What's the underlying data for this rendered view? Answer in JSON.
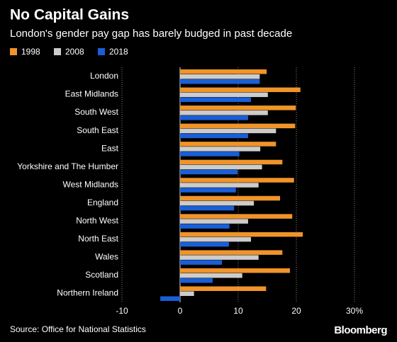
{
  "chart_data": {
    "type": "hbar",
    "title": "No Capital Gains",
    "subtitle": "London's gender pay gap has barely budged in past decade",
    "source": "Source: Office for National Statistics",
    "brand": "Bloomberg",
    "categories": [
      "London",
      "East Midlands",
      "South West",
      "South East",
      "East",
      "Yorkshire and The Humber",
      "West Midlands",
      "England",
      "North West",
      "North East",
      "Wales",
      "Scotland",
      "Northern Ireland"
    ],
    "series": [
      {
        "name": "1998",
        "color": "#f0942a",
        "values": [
          14.9,
          20.7,
          19.9,
          19.8,
          16.5,
          17.6,
          19.6,
          17.2,
          19.3,
          21.1,
          17.6,
          18.9,
          14.8
        ]
      },
      {
        "name": "2008",
        "color": "#cccccc",
        "values": [
          13.7,
          15.1,
          15.1,
          16.5,
          13.8,
          14.1,
          13.5,
          12.7,
          11.7,
          12.2,
          13.5,
          10.7,
          2.4
        ]
      },
      {
        "name": "2018",
        "color": "#1a5fd6",
        "values": [
          13.7,
          12.2,
          11.7,
          11.7,
          10.2,
          9.9,
          9.6,
          9.3,
          8.5,
          8.4,
          7.2,
          5.6,
          -3.4
        ]
      }
    ],
    "xlim": [
      -10,
      30
    ],
    "xticks": [
      -10,
      0,
      10,
      20,
      {
        "value": 30,
        "label": "30%"
      }
    ],
    "grid": true
  }
}
